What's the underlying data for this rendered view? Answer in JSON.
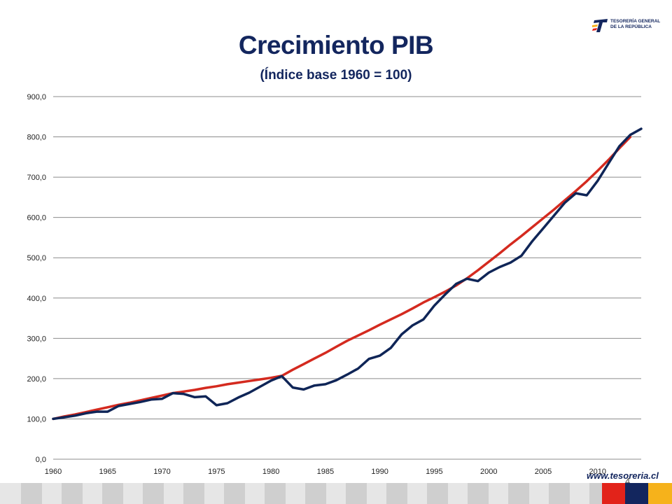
{
  "slide": {
    "title": "Crecimiento PIB",
    "subtitle": "(Índice base 1960 = 100)",
    "logo_line1": "TESORERÍA GENERAL",
    "logo_line2": "DE LA REPÚBLICA",
    "website": "www.tesoreria.cl",
    "page_number": "4"
  },
  "colors": {
    "title": "#13265e",
    "actual_series": "#0f2557",
    "trend_series": "#d42a1f",
    "grid": "#8c8c8c",
    "footer_gray_light": "#e6e6e6",
    "footer_gray_dark": "#cfcfcf",
    "flag_red": "#e2231a",
    "flag_blue": "#13265e",
    "flag_yellow": "#f6b21b"
  },
  "chart_data": {
    "type": "line",
    "title": "Crecimiento PIB",
    "subtitle": "(Índice base 1960 = 100)",
    "xlabel": "",
    "ylabel": "",
    "xlim": [
      1960,
      2014
    ],
    "ylim": [
      0,
      900
    ],
    "yticks": [
      "0,0",
      "100,0",
      "200,0",
      "300,0",
      "400,0",
      "500,0",
      "600,0",
      "700,0",
      "800,0",
      "900,0"
    ],
    "xticks": [
      "1960",
      "1965",
      "1970",
      "1975",
      "1980",
      "1985",
      "1990",
      "1995",
      "2000",
      "2005",
      "2010"
    ],
    "grid": "horizontal",
    "legend": "none",
    "series": [
      {
        "color": "#0f2557",
        "x": [
          1960,
          1961,
          1962,
          1963,
          1964,
          1965,
          1966,
          1967,
          1968,
          1969,
          1970,
          1971,
          1972,
          1973,
          1974,
          1975,
          1976,
          1977,
          1978,
          1979,
          1980,
          1981,
          1982,
          1983,
          1984,
          1985,
          1986,
          1987,
          1988,
          1989,
          1990,
          1991,
          1992,
          1993,
          1994,
          1995,
          1996,
          1997,
          1998,
          1999,
          2000,
          2001,
          2002,
          2003,
          2004,
          2005,
          2006,
          2007,
          2008,
          2009,
          2010,
          2011,
          2012,
          2013,
          2014
        ],
        "values": [
          100,
          104,
          108,
          114,
          118,
          118,
          132,
          137,
          142,
          148,
          150,
          164,
          162,
          154,
          156,
          134,
          139,
          153,
          165,
          180,
          195,
          206,
          178,
          173,
          183,
          186,
          196,
          210,
          225,
          249,
          257,
          276,
          310,
          332,
          347,
          381,
          409,
          435,
          448,
          442,
          463,
          477,
          488,
          505,
          541,
          573,
          605,
          637,
          660,
          655,
          691,
          734,
          777,
          805,
          820
        ]
      },
      {
        "color": "#d42a1f",
        "x": [
          1960,
          1961,
          1962,
          1963,
          1964,
          1965,
          1966,
          1967,
          1968,
          1969,
          1970,
          1971,
          1972,
          1973,
          1974,
          1975,
          1976,
          1977,
          1978,
          1979,
          1980,
          1981,
          1982,
          1983,
          1984,
          1985,
          1986,
          1987,
          1988,
          1989,
          1990,
          1991,
          1992,
          1993,
          1994,
          1995,
          1996,
          1997,
          1998,
          1999,
          2000,
          2001,
          2002,
          2003,
          2004,
          2005,
          2006,
          2007,
          2008,
          2009,
          2010,
          2011,
          2012,
          2013
        ],
        "values": [
          100,
          106,
          111,
          117,
          123,
          129,
          135,
          140,
          146,
          152,
          158,
          164,
          168,
          172,
          177,
          181,
          186,
          190,
          194,
          198,
          202,
          207,
          222,
          236,
          250,
          264,
          279,
          294,
          307,
          320,
          334,
          347,
          360,
          374,
          389,
          402,
          416,
          431,
          449,
          469,
          490,
          511,
          533,
          554,
          576,
          598,
          620,
          643,
          666,
          690,
          716,
          743,
          772,
          800
        ]
      }
    ]
  }
}
